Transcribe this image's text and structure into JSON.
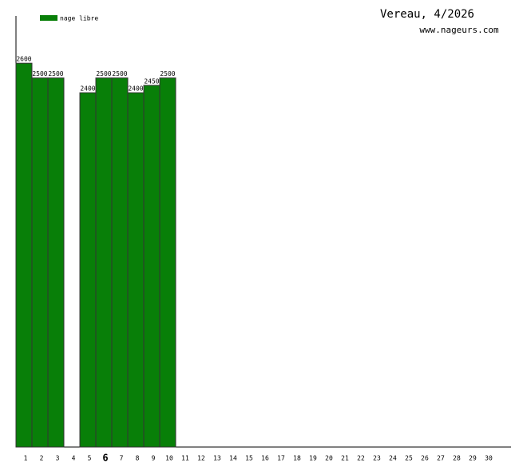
{
  "chart_data": {
    "type": "bar",
    "title": "Vereau, 4/2026",
    "subtitle": "www.nageurs.com",
    "categories": [
      "1",
      "2",
      "3",
      "4",
      "5",
      "6",
      "7",
      "8",
      "9",
      "10",
      "11",
      "12",
      "13",
      "14",
      "15",
      "16",
      "17",
      "18",
      "19",
      "20",
      "21",
      "22",
      "23",
      "24",
      "25",
      "26",
      "27",
      "28",
      "29",
      "30"
    ],
    "highlight": "6",
    "series": [
      {
        "name": "nage libre",
        "color": "#087f08",
        "values": [
          2600,
          2500,
          2500,
          null,
          2400,
          2500,
          2500,
          2400,
          2450,
          2500,
          null,
          null,
          null,
          null,
          null,
          null,
          null,
          null,
          null,
          null,
          null,
          null,
          null,
          null,
          null,
          null,
          null,
          null,
          null,
          null
        ]
      }
    ],
    "ylim": [
      0,
      2920
    ],
    "legend": "top-left"
  }
}
